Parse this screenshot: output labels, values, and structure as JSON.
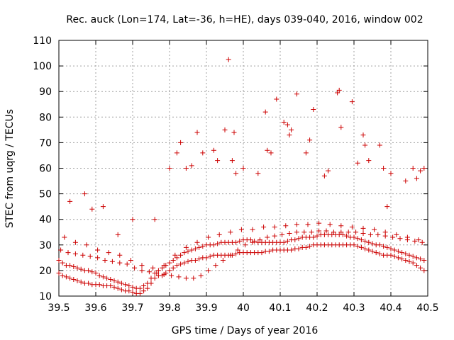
{
  "chart_data": {
    "type": "scatter",
    "title": "Rec. auck (Lon=174, Lat=-36, h=HE), days 039-040, 2016, window 002",
    "xlabel": "GPS time / Days of year 2016",
    "ylabel": "STEC from uqrg / TECUs",
    "xlim": [
      39.5,
      40.5
    ],
    "ylim": [
      10,
      110
    ],
    "xticks": [
      "39.5",
      "39.6",
      "39.7",
      "39.8",
      "39.9",
      "40",
      "40.1",
      "40.2",
      "40.3",
      "40.4",
      "40.5"
    ],
    "yticks": [
      "10",
      "20",
      "30",
      "40",
      "50",
      "60",
      "70",
      "80",
      "90",
      "100",
      "110"
    ],
    "grid": true,
    "marker": "+",
    "color": "#cc0000",
    "x": [
      39.5,
      39.51,
      39.52,
      39.53,
      39.54,
      39.55,
      39.56,
      39.57,
      39.58,
      39.59,
      39.6,
      39.61,
      39.62,
      39.63,
      39.64,
      39.65,
      39.66,
      39.67,
      39.68,
      39.69,
      39.7,
      39.71,
      39.72,
      39.73,
      39.74,
      39.75,
      39.76,
      39.77,
      39.78,
      39.79,
      39.8,
      39.81,
      39.82,
      39.83,
      39.84,
      39.85,
      39.86,
      39.87,
      39.88,
      39.89,
      39.9,
      39.91,
      39.92,
      39.93,
      39.94,
      39.95,
      39.96,
      39.97,
      39.98,
      39.99,
      40.0,
      40.01,
      40.02,
      40.03,
      40.04,
      40.05,
      40.06,
      40.07,
      40.08,
      40.09,
      40.1,
      40.11,
      40.12,
      40.13,
      40.14,
      40.15,
      40.16,
      40.17,
      40.18,
      40.19,
      40.2,
      40.21,
      40.22,
      40.23,
      40.24,
      40.25,
      40.26,
      40.27,
      40.28,
      40.29,
      40.3,
      40.31,
      40.32,
      40.33,
      40.34,
      40.35,
      40.36,
      40.37,
      40.38,
      40.39,
      40.4,
      40.41,
      40.42,
      40.43,
      40.44,
      40.45,
      40.46,
      40.47,
      40.48,
      40.49,
      39.5,
      39.51,
      39.52,
      39.53,
      39.54,
      39.55,
      39.56,
      39.57,
      39.58,
      39.59,
      39.6,
      39.61,
      39.62,
      39.63,
      39.64,
      39.65,
      39.66,
      39.67,
      39.68,
      39.69,
      39.7,
      39.71,
      39.72,
      39.73,
      39.74,
      39.75,
      39.76,
      39.77,
      39.78,
      39.79,
      39.8,
      39.81,
      39.82,
      39.83,
      39.84,
      39.85,
      39.86,
      39.87,
      39.88,
      39.89,
      39.9,
      39.91,
      39.92,
      39.93,
      39.94,
      39.95,
      39.96,
      39.97,
      39.98,
      39.99,
      40.0,
      40.01,
      40.02,
      40.03,
      40.04,
      40.05,
      40.06,
      40.07,
      40.08,
      40.09,
      40.1,
      40.11,
      40.12,
      40.13,
      40.14,
      40.15,
      40.16,
      40.17,
      40.18,
      40.19,
      40.2,
      40.21,
      40.22,
      40.23,
      40.24,
      40.25,
      40.26,
      40.27,
      40.28,
      40.29,
      40.3,
      40.31,
      40.32,
      40.33,
      40.34,
      40.35,
      40.36,
      40.37,
      40.38,
      40.39,
      40.4,
      40.41,
      40.42,
      40.43,
      40.44,
      40.45,
      40.46,
      40.47,
      40.48,
      40.49,
      39.505,
      39.525,
      39.545,
      39.565,
      39.585,
      39.605,
      39.625,
      39.645,
      39.665,
      39.685,
      39.705,
      39.725,
      39.745,
      39.765,
      39.785,
      39.805,
      39.825,
      39.845,
      39.865,
      39.885,
      39.905,
      39.925,
      39.945,
      39.965,
      39.985,
      40.005,
      40.025,
      40.045,
      40.065,
      40.085,
      40.105,
      40.125,
      40.145,
      40.165,
      40.185,
      40.205,
      40.225,
      40.245,
      40.265,
      40.285,
      40.305,
      40.325,
      40.345,
      40.365,
      40.385,
      40.405,
      40.425,
      40.445,
      40.465,
      40.485,
      39.515,
      39.545,
      39.575,
      39.605,
      39.635,
      39.665,
      39.695,
      39.725,
      39.755,
      39.785,
      39.815,
      39.845,
      39.875,
      39.905,
      39.935,
      39.965,
      39.995,
      40.025,
      40.055,
      40.085,
      40.115,
      40.145,
      40.175,
      40.205,
      40.235,
      40.265,
      40.295,
      40.325,
      40.355,
      40.385,
      40.415,
      40.445,
      40.475,
      39.53,
      39.57,
      39.59,
      39.62,
      39.66,
      39.7,
      39.76,
      39.8,
      39.82,
      39.83,
      39.845,
      39.86,
      39.875,
      39.89,
      39.92,
      39.93,
      39.95,
      39.96,
      39.97,
      39.975,
      39.98,
      40.0,
      40.04,
      40.06,
      40.065,
      40.075,
      40.09,
      40.11,
      40.12,
      40.125,
      40.13,
      40.145,
      40.17,
      40.18,
      40.19,
      40.22,
      40.23,
      40.255,
      40.26,
      40.265,
      40.295,
      40.31,
      40.325,
      40.33,
      40.34,
      40.37,
      40.38,
      40.39,
      40.4,
      40.44,
      40.46,
      40.47,
      40.48,
      40.49
    ],
    "y": [
      19,
      18,
      17.5,
      17,
      16.5,
      16,
      15.5,
      15,
      15,
      14.5,
      14.5,
      14.5,
      14,
      14,
      14,
      13.5,
      13,
      12.5,
      12,
      12,
      11.5,
      11,
      11,
      12,
      13,
      15,
      17,
      18,
      18,
      19,
      20,
      21,
      22,
      22.5,
      23,
      23.5,
      24,
      24,
      24.5,
      25,
      25,
      25.5,
      26,
      26,
      26,
      26,
      26,
      26,
      26.5,
      27,
      27,
      27,
      27,
      27,
      27,
      27,
      27.5,
      27.5,
      28,
      28,
      28,
      28,
      28,
      28,
      28.5,
      28.5,
      29,
      29,
      29.5,
      30,
      30,
      30,
      30,
      30,
      30,
      30,
      30,
      30,
      30,
      30,
      30,
      29.5,
      29,
      28.5,
      28,
      27.5,
      27,
      26.5,
      26,
      26,
      26,
      25.5,
      25,
      24.5,
      24,
      23.5,
      23,
      22,
      21,
      20,
      24,
      23,
      22,
      22,
      21.5,
      21,
      20.5,
      20,
      20,
      19.5,
      19,
      18,
      17.5,
      17,
      16.5,
      16,
      15.5,
      15,
      14.5,
      14,
      13.5,
      13,
      13,
      14,
      15,
      17,
      19,
      20,
      21,
      22,
      23,
      24,
      25,
      26,
      27,
      27.5,
      28,
      28.5,
      29,
      29.5,
      30,
      30,
      30,
      30.5,
      31,
      31,
      31,
      31,
      31,
      31.5,
      32,
      32,
      32,
      31.5,
      31,
      31,
      31,
      31,
      31,
      31,
      31,
      31,
      31.5,
      32,
      32,
      32.5,
      33,
      33,
      33,
      33,
      33.5,
      34,
      34,
      34,
      34,
      34,
      34,
      34,
      33.5,
      33,
      33,
      32.5,
      32,
      31.5,
      31,
      30.5,
      30,
      30,
      29.5,
      29,
      28.5,
      28,
      27.5,
      27,
      26.5,
      26,
      25.5,
      25,
      24.5,
      24,
      28,
      27,
      26.5,
      26,
      25.5,
      25,
      24,
      23.5,
      23,
      22.5,
      21,
      20,
      19.5,
      19,
      18.5,
      18,
      17.5,
      17,
      17,
      18,
      20,
      22,
      24,
      26,
      28,
      30,
      31,
      32,
      33,
      33.5,
      34,
      34.5,
      35,
      35,
      35,
      35.5,
      35.5,
      35,
      35,
      35,
      35,
      34.5,
      34,
      34,
      33.5,
      33,
      32.5,
      32,
      31.5,
      31,
      33,
      31,
      30,
      28,
      27,
      26,
      24,
      22,
      21,
      22,
      26,
      29,
      31,
      33,
      34,
      35,
      36,
      36,
      37,
      37,
      37.5,
      38,
      38,
      38.5,
      38,
      37.5,
      37,
      36.5,
      36,
      35,
      34,
      33,
      32,
      47,
      50,
      44,
      45,
      34,
      40,
      40,
      60,
      66,
      70,
      60,
      61,
      74,
      66,
      67,
      63,
      75,
      102.5,
      63,
      74,
      58,
      60,
      58,
      82,
      67,
      66,
      87,
      78,
      77,
      73,
      75,
      89,
      66,
      71,
      83,
      57,
      59,
      89.5,
      90.5,
      76,
      86,
      62,
      73,
      69,
      63,
      69,
      60,
      45,
      58,
      55,
      60,
      56,
      59,
      60
    ]
  }
}
